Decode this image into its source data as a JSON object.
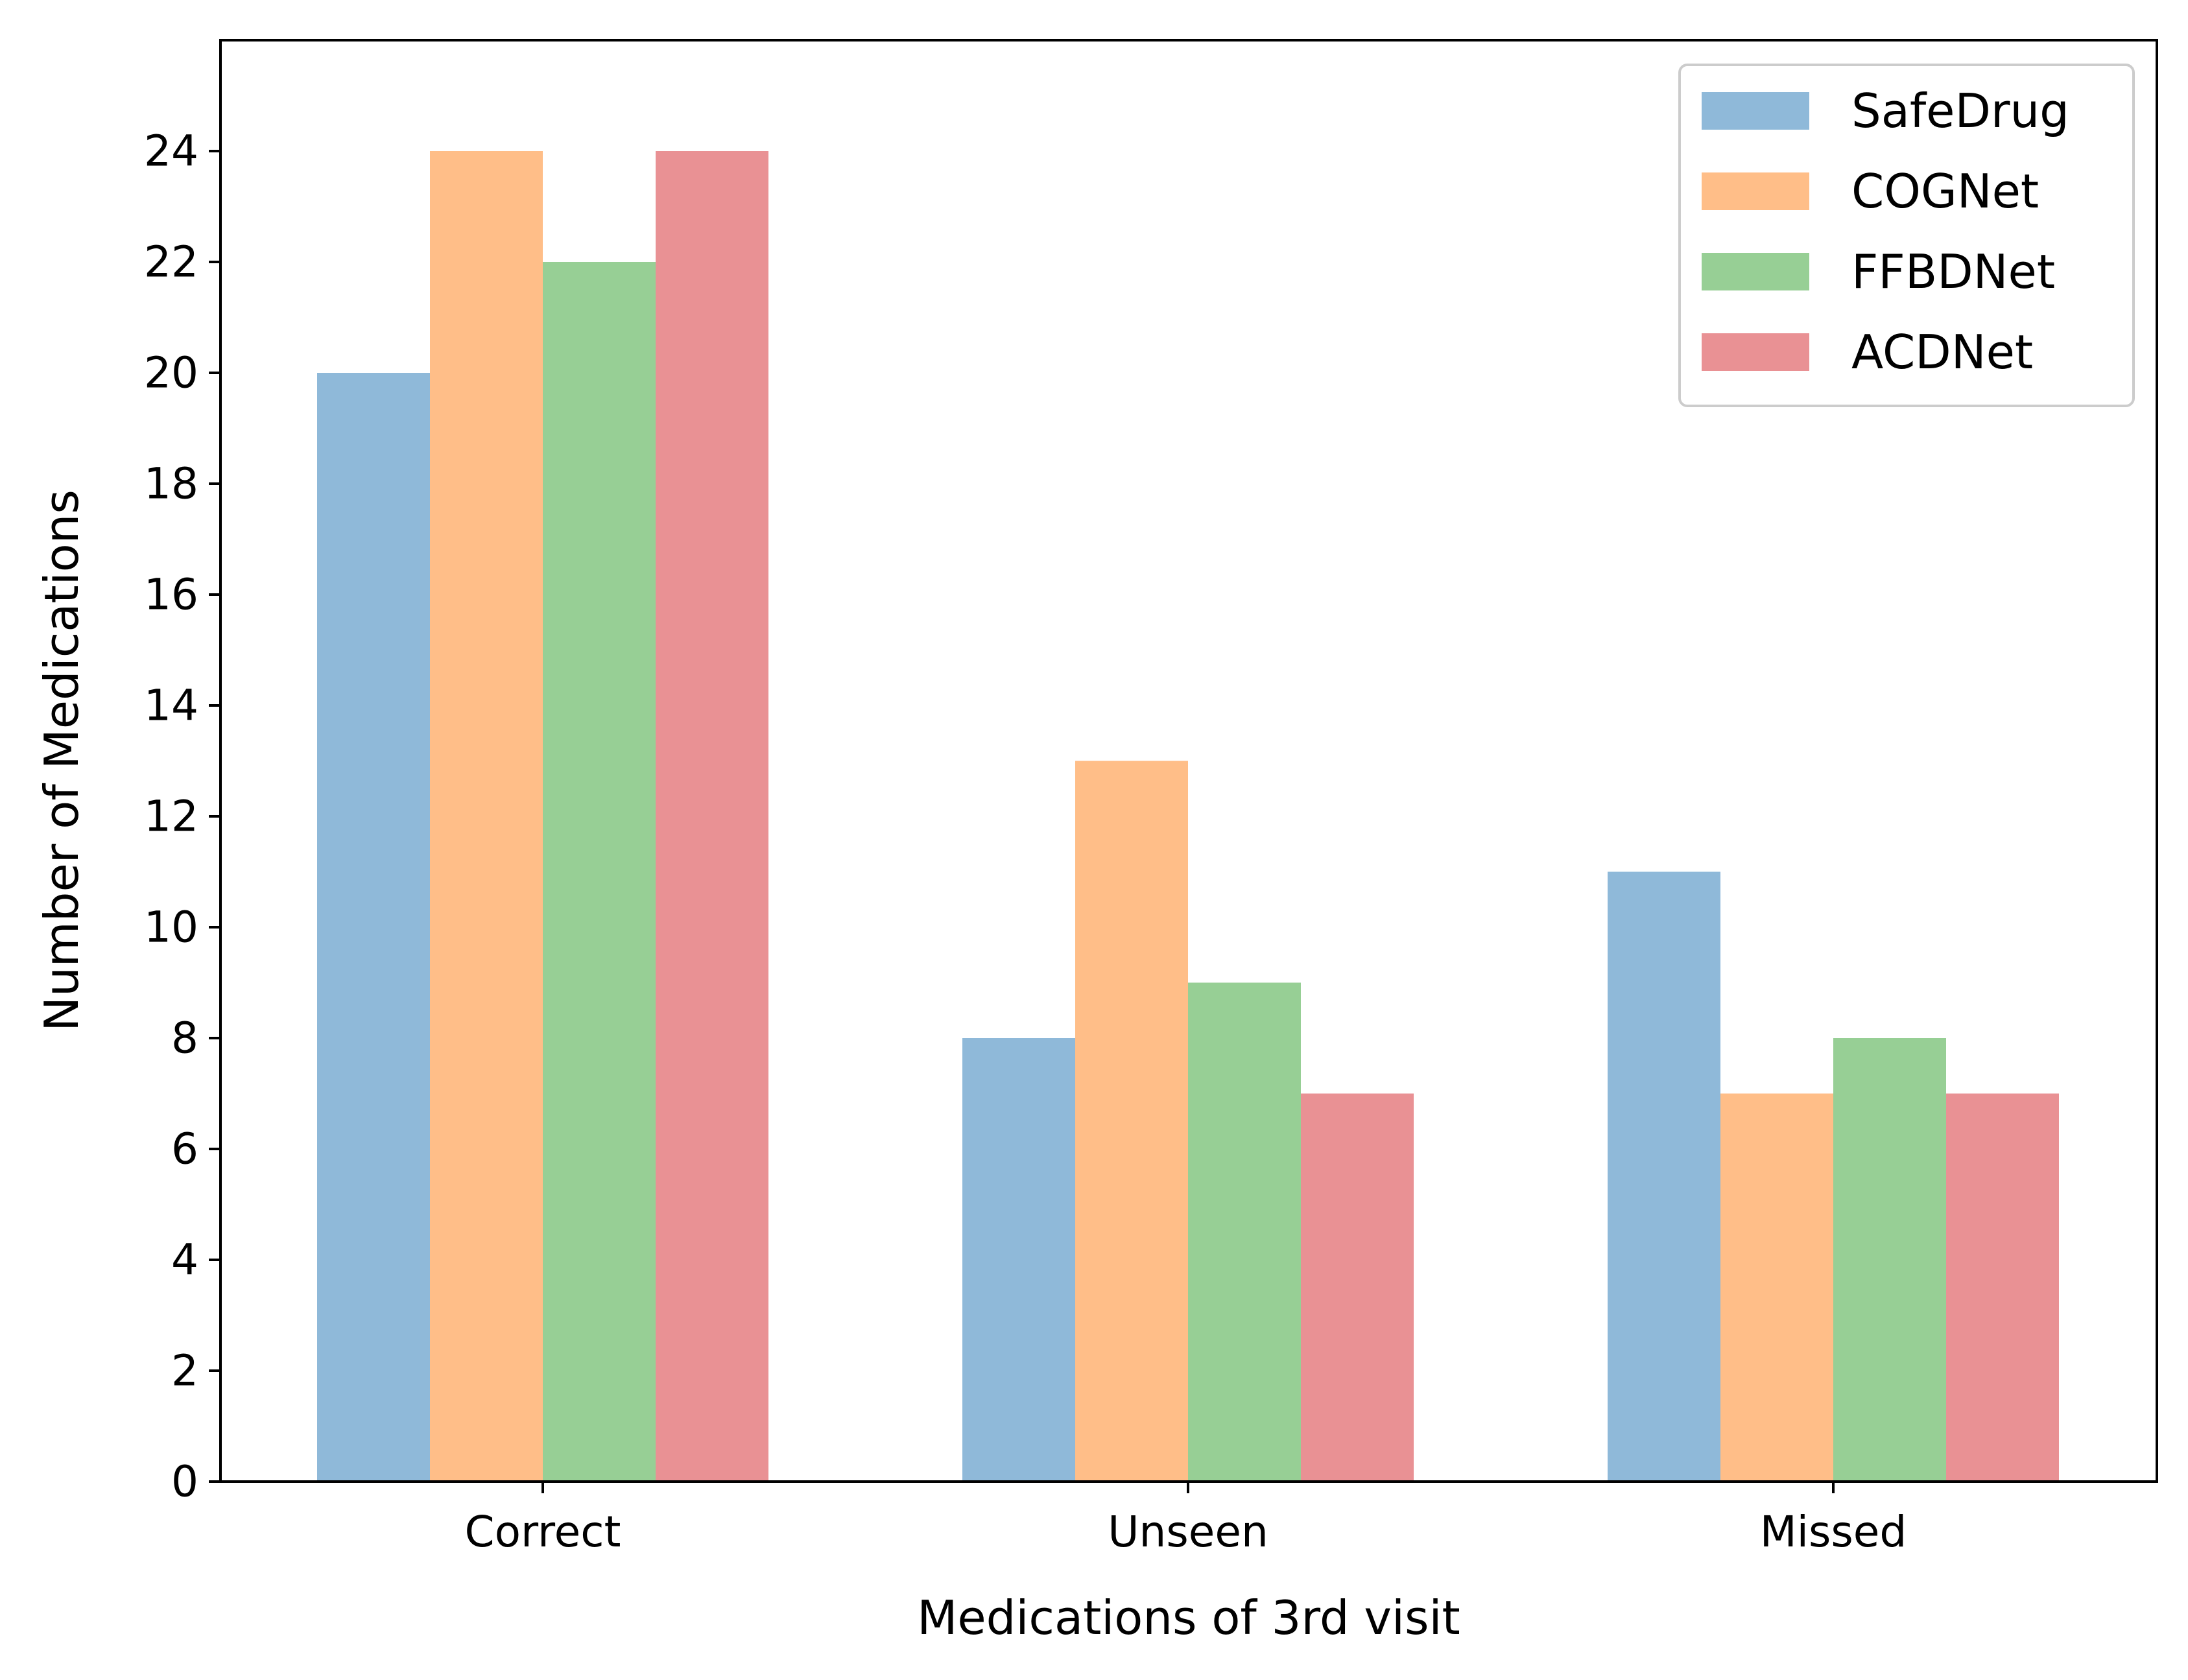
{
  "chart_data": {
    "type": "bar",
    "title": "",
    "xlabel": "Medications of 3rd visit",
    "ylabel": "Number of Medications",
    "categories": [
      "Correct",
      "Unseen",
      "Missed"
    ],
    "series": [
      {
        "name": "SafeDrug",
        "color": "#8fb9d9",
        "values": [
          20,
          8,
          11
        ]
      },
      {
        "name": "COGNet",
        "color": "#ffbe88",
        "values": [
          24,
          13,
          7
        ]
      },
      {
        "name": "FFBDNet",
        "color": "#97cf95",
        "values": [
          22,
          9,
          8
        ]
      },
      {
        "name": "ACDNet",
        "color": "#e99194",
        "values": [
          24,
          7,
          7
        ]
      }
    ],
    "ylim": [
      0,
      26
    ],
    "yticks": [
      0,
      2,
      4,
      6,
      8,
      10,
      12,
      14,
      16,
      18,
      20,
      22,
      24
    ],
    "grid": false,
    "legend_position": "top-right"
  }
}
